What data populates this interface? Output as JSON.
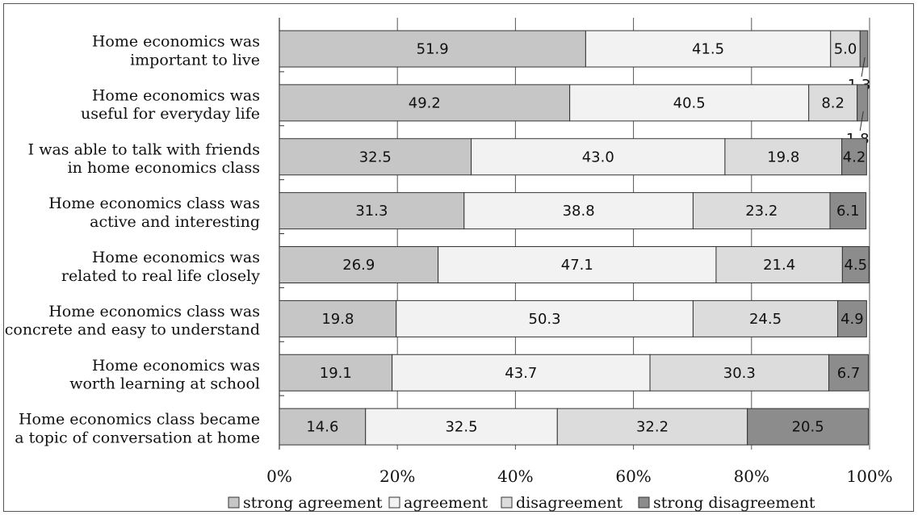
{
  "chart_data": {
    "type": "bar",
    "orientation": "horizontal",
    "stacked": true,
    "categories": [
      [
        "Home economics was",
        "important to live"
      ],
      [
        "Home economics was",
        "useful for everyday life"
      ],
      [
        "I was able to talk with friends",
        "in home economics class"
      ],
      [
        "Home economics class was",
        "active and interesting"
      ],
      [
        "Home economics was",
        "related to real life closely"
      ],
      [
        "Home economics class was",
        "concrete and easy to understand"
      ],
      [
        "Home economics was",
        "worth learning at school"
      ],
      [
        "Home economics class became",
        "a topic of conversation at home"
      ]
    ],
    "series": [
      {
        "name": "strong agreement",
        "color": "#c6c6c6",
        "values": [
          51.9,
          49.2,
          32.5,
          31.3,
          26.9,
          19.8,
          19.1,
          14.6
        ]
      },
      {
        "name": "agreement",
        "color": "#f2f2f2",
        "values": [
          41.5,
          40.5,
          43.0,
          38.8,
          47.1,
          50.3,
          43.7,
          32.5
        ]
      },
      {
        "name": "disagreement",
        "color": "#dcdcdc",
        "values": [
          5.0,
          8.2,
          19.8,
          23.2,
          21.4,
          24.5,
          30.3,
          32.2
        ]
      },
      {
        "name": "strong disagreement",
        "color": "#8c8c8c",
        "values": [
          1.3,
          1.8,
          4.2,
          6.1,
          4.5,
          4.9,
          6.7,
          20.5
        ]
      }
    ],
    "value_labels": [
      [
        "51.9",
        "41.5",
        "5.0",
        "1.3"
      ],
      [
        "49.2",
        "40.5",
        "8.2",
        "1.8"
      ],
      [
        "32.5",
        "43.0",
        "19.8",
        "4.2"
      ],
      [
        "31.3",
        "38.8",
        "23.2",
        "6.1"
      ],
      [
        "26.9",
        "47.1",
        "21.4",
        "4.5"
      ],
      [
        "19.8",
        "50.3",
        "24.5",
        "4.9"
      ],
      [
        "19.1",
        "43.7",
        "30.3",
        "6.7"
      ],
      [
        "14.6",
        "32.5",
        "32.2",
        "20.5"
      ]
    ],
    "x_ticks": [
      "0%",
      "20%",
      "40%",
      "60%",
      "80%",
      "100%"
    ],
    "xlim": [
      0,
      100
    ],
    "grid": "vertical",
    "legend": "bottom"
  }
}
